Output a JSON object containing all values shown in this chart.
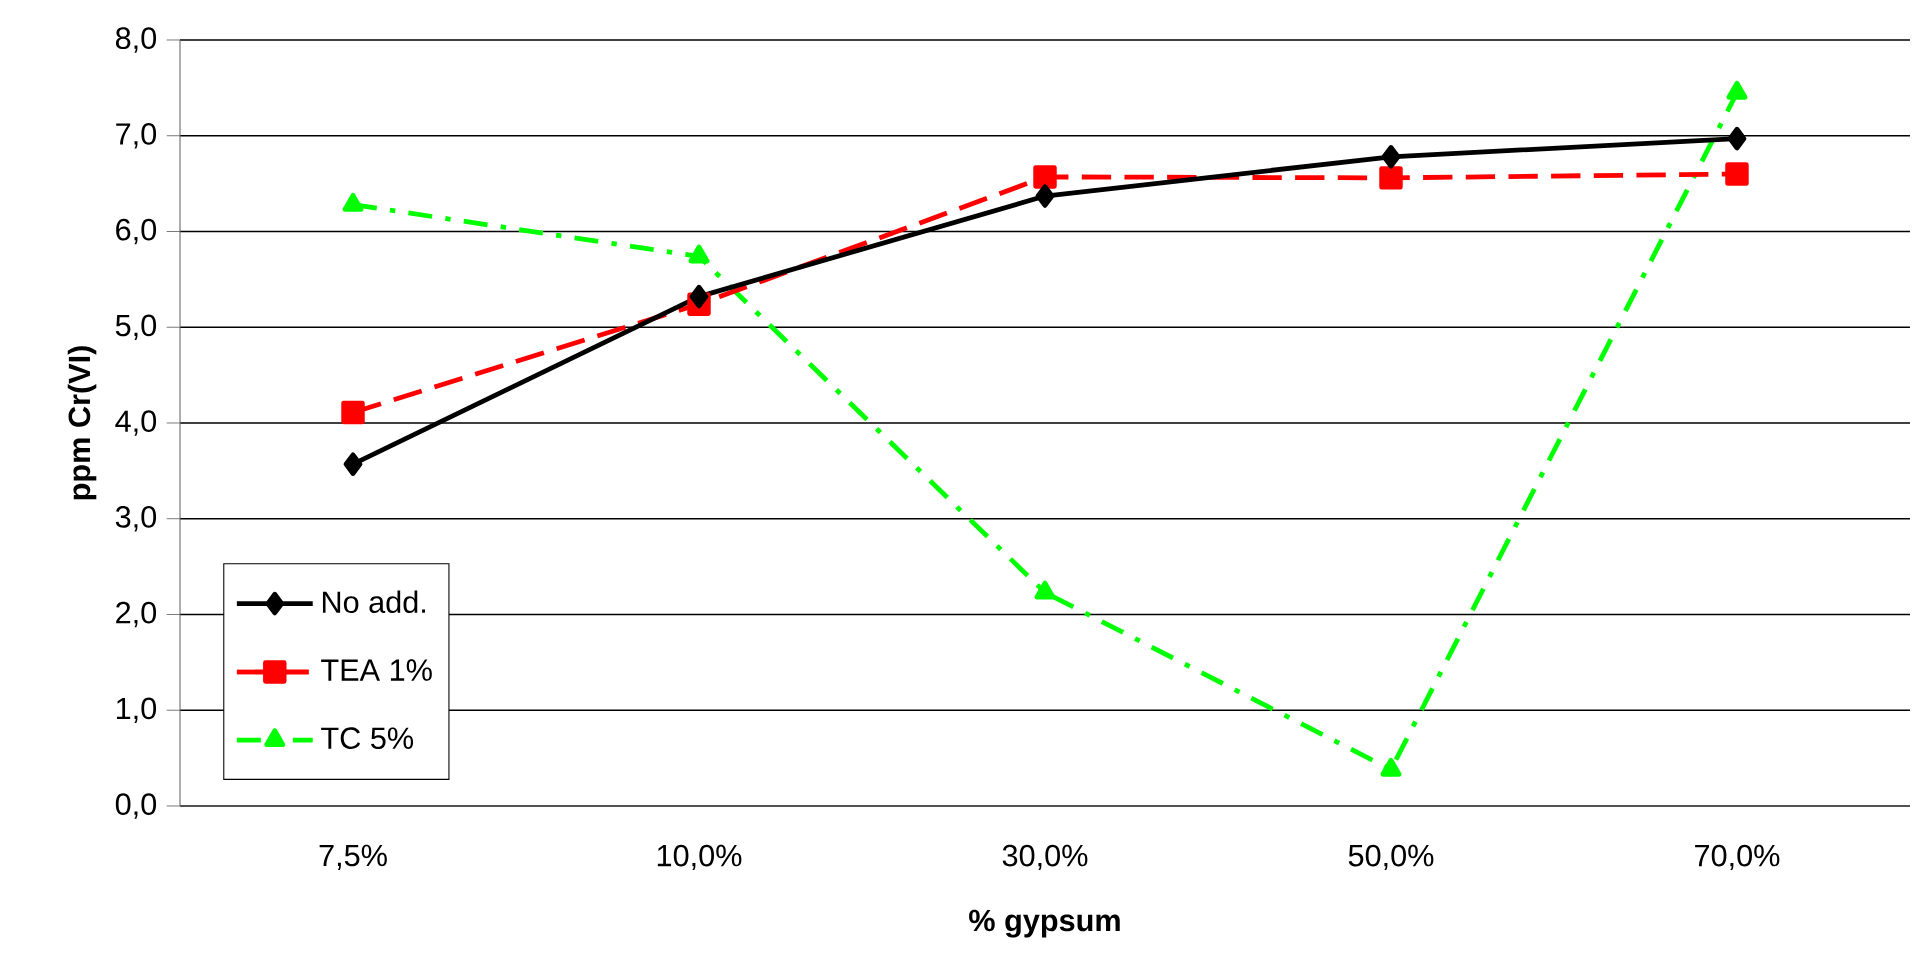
{
  "chart_data": {
    "type": "line",
    "xlabel": "% gypsum",
    "ylabel": "ppm Cr(VI)",
    "categories": [
      "7,5%",
      "10,0%",
      "30,0%",
      "50,0%",
      "70,0%"
    ],
    "series": [
      {
        "name": "No add.",
        "color": "#000000",
        "values": [
          3.57,
          5.32,
          6.37,
          6.78,
          6.97
        ],
        "marker": "diamond",
        "line_style": "solid"
      },
      {
        "name": "TEA 1%",
        "color": "#ff0000",
        "values": [
          4.11,
          5.24,
          6.57,
          6.56,
          6.6
        ],
        "marker": "square",
        "line_style": "dashed"
      },
      {
        "name": "TC 5%",
        "color": "#00ff00",
        "values": [
          6.28,
          5.74,
          2.23,
          0.38,
          7.45
        ],
        "marker": "triangle",
        "line_style": "dashdot"
      }
    ],
    "ylim": [
      0,
      8
    ],
    "yticks": [
      {
        "value": 0,
        "label": "0,0"
      },
      {
        "value": 1,
        "label": "1,0"
      },
      {
        "value": 2,
        "label": "2,0"
      },
      {
        "value": 3,
        "label": "3,0"
      },
      {
        "value": 4,
        "label": "4,0"
      },
      {
        "value": 5,
        "label": "5,0"
      },
      {
        "value": 6,
        "label": "6,0"
      },
      {
        "value": 7,
        "label": "7,0"
      },
      {
        "value": 8,
        "label": "8,0"
      }
    ],
    "grid": "y",
    "legend": "bottom left"
  }
}
